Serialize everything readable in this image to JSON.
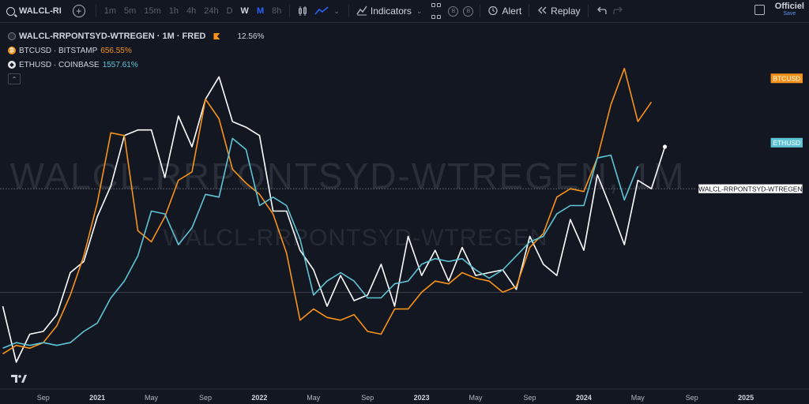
{
  "toolbar": {
    "symbol": "WALCL-RI",
    "intervals": [
      {
        "label": "1m",
        "state": "dim"
      },
      {
        "label": "5m",
        "state": "dim"
      },
      {
        "label": "15m",
        "state": "dim"
      },
      {
        "label": "1h",
        "state": "dim"
      },
      {
        "label": "4h",
        "state": "dim"
      },
      {
        "label": "24h",
        "state": "dim"
      },
      {
        "label": "D",
        "state": "dim"
      },
      {
        "label": "W",
        "state": "active"
      },
      {
        "label": "M",
        "state": "fav"
      },
      {
        "label": "8h",
        "state": "dim"
      }
    ],
    "indicators_label": "Indicators",
    "alert_label": "Alert",
    "replay_label": "Replay",
    "badge_b1": "B",
    "badge_b2": "B",
    "account_label": "Officiel",
    "account_sub": "Save"
  },
  "legend": {
    "main_title": "WALCL-RRPONTSYD-WTREGEN · 1M · FRED",
    "main_value": "12.56%",
    "series": [
      {
        "name": "BTCUSD · BITSTAMP",
        "value": "656.55%",
        "color": "#f7931a",
        "icon": "bitcoin-icon",
        "glyph": "₿"
      },
      {
        "name": "ETHUSD · COINBASE",
        "value": "1557.61%",
        "color": "#5fc4d6",
        "icon": "ethereum-icon",
        "glyph": "◆"
      }
    ]
  },
  "watermark": {
    "large": "WALCL-RRPONTSYD-WTREGEN, 1M",
    "small": "WALCL-RRPONTSYD-WTREGEN"
  },
  "chart_data": {
    "type": "line",
    "x_labels": [
      "Sep",
      "2021",
      "May",
      "Sep",
      "2022",
      "May",
      "Sep",
      "2023",
      "May",
      "Sep",
      "2024",
      "May",
      "Sep",
      "2025"
    ],
    "x_label_positions": [
      2020.667,
      2021.0,
      2021.333,
      2021.667,
      2022.0,
      2022.333,
      2022.667,
      2023.0,
      2023.333,
      2023.667,
      2024.0,
      2024.333,
      2024.667,
      2025.0
    ],
    "year_ticks": [
      "2021",
      "2022",
      "2023",
      "2024",
      "2025"
    ],
    "x_range": [
      2020.4,
      2025.35
    ],
    "y_range": [
      -5,
      105
    ],
    "start": 2020.417,
    "step": 0.0833333,
    "series": [
      {
        "name": "WALCL-RRPONTSYD-WTREGEN",
        "color": "#ffffff",
        "values": [
          15,
          -5,
          5,
          6,
          12,
          27,
          31,
          47,
          58,
          76,
          78,
          78,
          61,
          83,
          72,
          89,
          97,
          81,
          79,
          76,
          49,
          49,
          35,
          28,
          15,
          26,
          17,
          19,
          30,
          15,
          40,
          26,
          35,
          24,
          36,
          26,
          27,
          28,
          21,
          40,
          30,
          26,
          46,
          35,
          62,
          50,
          37,
          60,
          57,
          72
        ],
        "end_dot": true
      },
      {
        "name": "BTCUSD",
        "color": "#f7931a",
        "values": [
          -2,
          1,
          0,
          2,
          8,
          19,
          33,
          52,
          77,
          76,
          42,
          38,
          47,
          60,
          63,
          89,
          82,
          64,
          59,
          55,
          48,
          34,
          10,
          14,
          11,
          10,
          12,
          6,
          5,
          14,
          14,
          20,
          24,
          23,
          27,
          25,
          24,
          20,
          22,
          36,
          41,
          54,
          57,
          56,
          68,
          87,
          100,
          81,
          88
        ],
        "label": "BTCUSD"
      },
      {
        "name": "ETHUSD",
        "color": "#5fc4d6",
        "values": [
          0,
          2,
          1,
          2,
          1,
          2,
          6,
          9,
          18,
          24,
          33,
          49,
          48,
          37,
          43,
          55,
          54,
          75,
          71,
          51,
          54,
          51,
          39,
          19,
          24,
          27,
          24,
          18,
          18,
          23,
          24,
          30,
          32,
          31,
          32,
          28,
          25,
          28,
          33,
          38,
          40,
          48,
          51,
          51,
          68,
          69,
          53,
          65
        ],
        "label": "ETHUSD"
      }
    ],
    "reference_label": "WALCL-RRPONTSYD-WTREGEN",
    "reference_value": 57,
    "baseline_value": 20
  }
}
